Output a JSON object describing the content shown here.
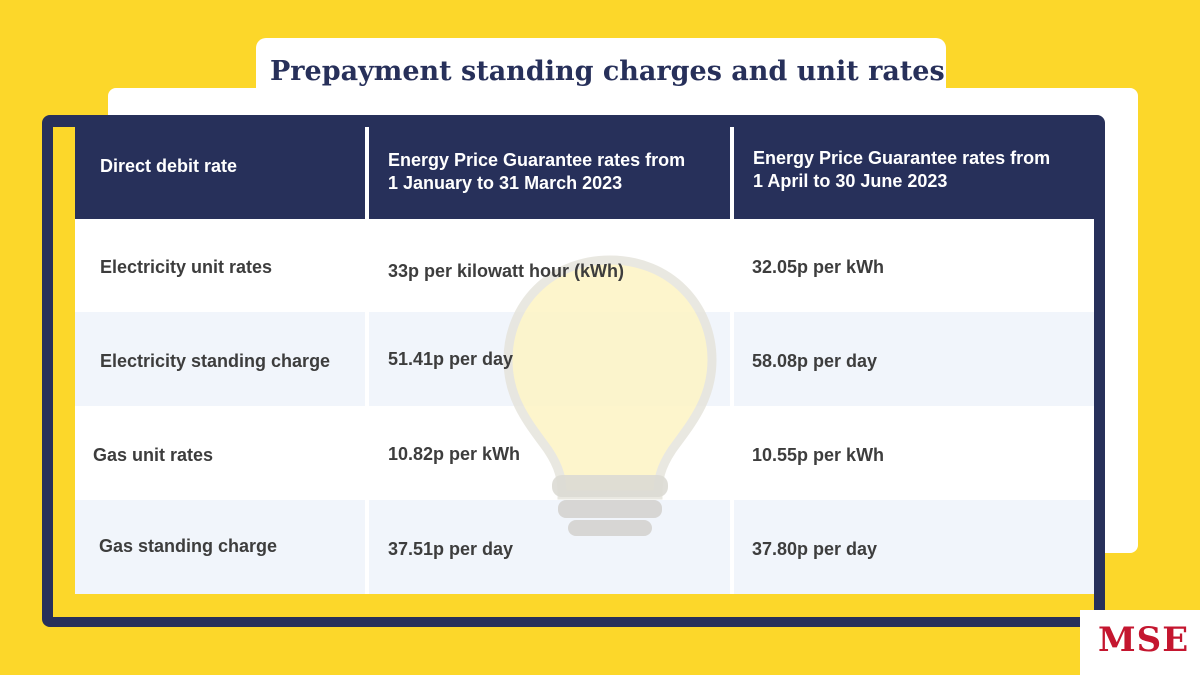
{
  "title": "Prepayment standing charges and unit rates",
  "table": {
    "headers": [
      "Direct debit rate",
      "Energy Price Guarantee rates from\n1 January to 31 March 2023",
      "Energy Price Guarantee rates from\n1 April to 30 June 2023"
    ],
    "rows": [
      [
        "Electricity unit rates",
        "33p per kilowatt hour (kWh)",
        "32.05p per kWh"
      ],
      [
        "Electricity standing charge",
        "51.41p per day",
        "58.08p per day"
      ],
      [
        "Gas unit rates",
        "10.82p per kWh",
        "10.55p per kWh"
      ],
      [
        "Gas standing charge",
        "37.51p per day",
        "37.80p per day"
      ]
    ]
  },
  "logo": "MSE",
  "colors": {
    "background": "#fcd72a",
    "navy": "#27305a",
    "logo_red": "#c4162f"
  },
  "icons": [
    "lightbulb-icon"
  ]
}
